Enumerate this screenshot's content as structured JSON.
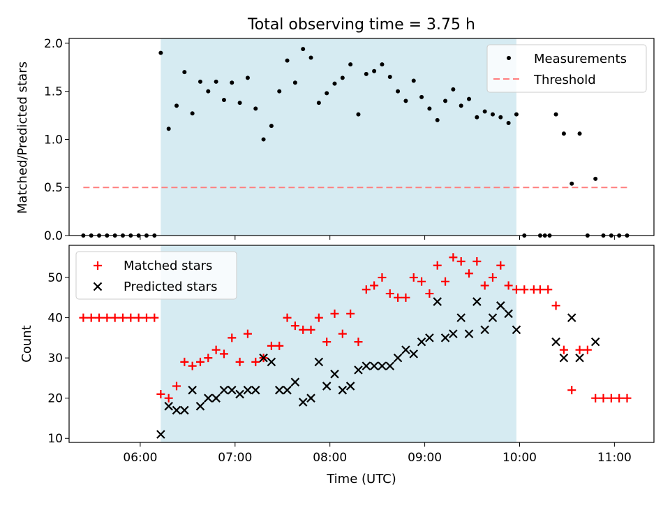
{
  "chart_data": [
    {
      "type": "scatter",
      "title": "Total observing time = 3.75 h",
      "ylabel": "Matched/Predicted stars",
      "ylim": [
        0,
        2.05
      ],
      "yticks": [
        "0.0",
        "0.5",
        "1.0",
        "1.5",
        "2.0"
      ],
      "shaded_interval": [
        "06:13",
        "09:58"
      ],
      "legend_position": "upper right",
      "series": [
        {
          "name": "Measurements",
          "color": "#000000",
          "marker": "dot",
          "points": [
            [
              "05:24",
              0
            ],
            [
              "05:29",
              0
            ],
            [
              "05:34",
              0
            ],
            [
              "05:39",
              0
            ],
            [
              "05:44",
              0
            ],
            [
              "05:49",
              0
            ],
            [
              "05:54",
              0
            ],
            [
              "05:59",
              0
            ],
            [
              "06:04",
              0
            ],
            [
              "06:09",
              0
            ],
            [
              "06:13",
              1.9
            ],
            [
              "06:18",
              1.11
            ],
            [
              "06:23",
              1.35
            ],
            [
              "06:28",
              1.7
            ],
            [
              "06:33",
              1.27
            ],
            [
              "06:38",
              1.6
            ],
            [
              "06:43",
              1.5
            ],
            [
              "06:48",
              1.6
            ],
            [
              "06:53",
              1.41
            ],
            [
              "06:58",
              1.59
            ],
            [
              "07:03",
              1.38
            ],
            [
              "07:08",
              1.64
            ],
            [
              "07:13",
              1.32
            ],
            [
              "07:18",
              1.0
            ],
            [
              "07:23",
              1.14
            ],
            [
              "07:28",
              1.5
            ],
            [
              "07:33",
              1.82
            ],
            [
              "07:38",
              1.59
            ],
            [
              "07:43",
              1.94
            ],
            [
              "07:48",
              1.85
            ],
            [
              "07:53",
              1.38
            ],
            [
              "07:58",
              1.48
            ],
            [
              "08:03",
              1.58
            ],
            [
              "08:08",
              1.64
            ],
            [
              "08:13",
              1.78
            ],
            [
              "08:18",
              1.26
            ],
            [
              "08:23",
              1.68
            ],
            [
              "08:28",
              1.71
            ],
            [
              "08:33",
              1.78
            ],
            [
              "08:38",
              1.65
            ],
            [
              "08:43",
              1.5
            ],
            [
              "08:48",
              1.4
            ],
            [
              "08:53",
              1.61
            ],
            [
              "08:58",
              1.44
            ],
            [
              "09:03",
              1.32
            ],
            [
              "09:08",
              1.2
            ],
            [
              "09:13",
              1.4
            ],
            [
              "09:18",
              1.52
            ],
            [
              "09:23",
              1.35
            ],
            [
              "09:28",
              1.42
            ],
            [
              "09:33",
              1.23
            ],
            [
              "09:38",
              1.29
            ],
            [
              "09:43",
              1.26
            ],
            [
              "09:48",
              1.23
            ],
            [
              "09:53",
              1.17
            ],
            [
              "09:58",
              1.26
            ],
            [
              "10:03",
              0
            ],
            [
              "10:13",
              0
            ],
            [
              "10:16",
              0
            ],
            [
              "10:19",
              0
            ],
            [
              "10:23",
              1.26
            ],
            [
              "10:28",
              1.06
            ],
            [
              "10:33",
              0.54
            ],
            [
              "10:38",
              1.06
            ],
            [
              "10:43",
              0
            ],
            [
              "10:48",
              0.59
            ],
            [
              "10:53",
              0
            ],
            [
              "10:58",
              0
            ],
            [
              "11:03",
              0
            ],
            [
              "11:08",
              0
            ]
          ]
        },
        {
          "name": "Threshold",
          "color": "#ff7f7f",
          "marker": "dashed-line",
          "points": [
            [
              "05:24",
              0.5
            ],
            [
              "11:08",
              0.5
            ]
          ]
        }
      ]
    },
    {
      "type": "scatter",
      "xlabel": "Time (UTC)",
      "ylabel": "Count",
      "ylim": [
        9,
        58
      ],
      "yticks": [
        "10",
        "20",
        "30",
        "40",
        "50"
      ],
      "xticks": [
        "06:00",
        "07:00",
        "08:00",
        "09:00",
        "10:00",
        "11:00"
      ],
      "shaded_interval": [
        "06:13",
        "09:58"
      ],
      "legend_position": "upper left",
      "series": [
        {
          "name": "Matched stars",
          "color": "#ff0000",
          "marker": "plus",
          "points": [
            [
              "05:24",
              40
            ],
            [
              "05:29",
              40
            ],
            [
              "05:34",
              40
            ],
            [
              "05:39",
              40
            ],
            [
              "05:44",
              40
            ],
            [
              "05:49",
              40
            ],
            [
              "05:54",
              40
            ],
            [
              "05:59",
              40
            ],
            [
              "06:04",
              40
            ],
            [
              "06:09",
              40
            ],
            [
              "06:13",
              21
            ],
            [
              "06:18",
              20
            ],
            [
              "06:23",
              23
            ],
            [
              "06:28",
              29
            ],
            [
              "06:33",
              28
            ],
            [
              "06:38",
              29
            ],
            [
              "06:43",
              30
            ],
            [
              "06:48",
              32
            ],
            [
              "06:53",
              31
            ],
            [
              "06:58",
              35
            ],
            [
              "07:03",
              29
            ],
            [
              "07:08",
              36
            ],
            [
              "07:13",
              29
            ],
            [
              "07:18",
              30
            ],
            [
              "07:23",
              33
            ],
            [
              "07:28",
              33
            ],
            [
              "07:33",
              40
            ],
            [
              "07:38",
              38
            ],
            [
              "07:43",
              37
            ],
            [
              "07:48",
              37
            ],
            [
              "07:53",
              40
            ],
            [
              "07:58",
              34
            ],
            [
              "08:03",
              41
            ],
            [
              "08:08",
              36
            ],
            [
              "08:13",
              41
            ],
            [
              "08:18",
              34
            ],
            [
              "08:23",
              47
            ],
            [
              "08:28",
              48
            ],
            [
              "08:33",
              50
            ],
            [
              "08:38",
              46
            ],
            [
              "08:43",
              45
            ],
            [
              "08:48",
              45
            ],
            [
              "08:53",
              50
            ],
            [
              "08:58",
              49
            ],
            [
              "09:03",
              46
            ],
            [
              "09:08",
              53
            ],
            [
              "09:13",
              49
            ],
            [
              "09:18",
              55
            ],
            [
              "09:23",
              54
            ],
            [
              "09:28",
              51
            ],
            [
              "09:33",
              54
            ],
            [
              "09:38",
              48
            ],
            [
              "09:43",
              50
            ],
            [
              "09:48",
              53
            ],
            [
              "09:53",
              48
            ],
            [
              "09:58",
              47
            ],
            [
              "10:03",
              47
            ],
            [
              "10:09",
              47
            ],
            [
              "10:13",
              47
            ],
            [
              "10:18",
              47
            ],
            [
              "10:23",
              43
            ],
            [
              "10:28",
              32
            ],
            [
              "10:33",
              22
            ],
            [
              "10:38",
              32
            ],
            [
              "10:43",
              32
            ],
            [
              "10:48",
              20
            ],
            [
              "10:53",
              20
            ],
            [
              "10:58",
              20
            ],
            [
              "11:03",
              20
            ],
            [
              "11:08",
              20
            ]
          ]
        },
        {
          "name": "Predicted stars",
          "color": "#000000",
          "marker": "x",
          "points": [
            [
              "06:13",
              11
            ],
            [
              "06:18",
              18
            ],
            [
              "06:23",
              17
            ],
            [
              "06:28",
              17
            ],
            [
              "06:33",
              22
            ],
            [
              "06:38",
              18
            ],
            [
              "06:43",
              20
            ],
            [
              "06:48",
              20
            ],
            [
              "06:53",
              22
            ],
            [
              "06:58",
              22
            ],
            [
              "07:03",
              21
            ],
            [
              "07:08",
              22
            ],
            [
              "07:13",
              22
            ],
            [
              "07:18",
              30
            ],
            [
              "07:23",
              29
            ],
            [
              "07:28",
              22
            ],
            [
              "07:33",
              22
            ],
            [
              "07:38",
              24
            ],
            [
              "07:43",
              19
            ],
            [
              "07:48",
              20
            ],
            [
              "07:53",
              29
            ],
            [
              "07:58",
              23
            ],
            [
              "08:03",
              26
            ],
            [
              "08:08",
              22
            ],
            [
              "08:13",
              23
            ],
            [
              "08:18",
              27
            ],
            [
              "08:23",
              28
            ],
            [
              "08:28",
              28
            ],
            [
              "08:33",
              28
            ],
            [
              "08:38",
              28
            ],
            [
              "08:43",
              30
            ],
            [
              "08:48",
              32
            ],
            [
              "08:53",
              31
            ],
            [
              "08:58",
              34
            ],
            [
              "09:03",
              35
            ],
            [
              "09:08",
              44
            ],
            [
              "09:13",
              35
            ],
            [
              "09:18",
              36
            ],
            [
              "09:23",
              40
            ],
            [
              "09:28",
              36
            ],
            [
              "09:33",
              44
            ],
            [
              "09:38",
              37
            ],
            [
              "09:43",
              40
            ],
            [
              "09:48",
              43
            ],
            [
              "09:53",
              41
            ],
            [
              "09:58",
              37
            ],
            [
              "10:23",
              34
            ],
            [
              "10:28",
              30
            ],
            [
              "10:33",
              40
            ],
            [
              "10:38",
              30
            ],
            [
              "10:48",
              34
            ]
          ]
        }
      ]
    }
  ]
}
